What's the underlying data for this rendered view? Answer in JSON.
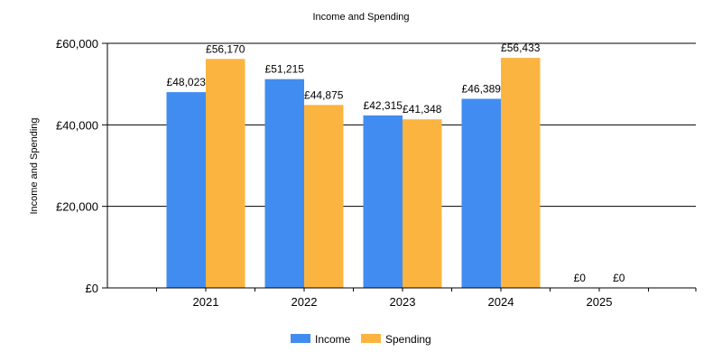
{
  "chart_data": {
    "type": "bar",
    "title": "Income and Spending",
    "ylabel": "Income and Spending",
    "xlabel": "",
    "categories": [
      "2021",
      "2022",
      "2023",
      "2024",
      "2025"
    ],
    "series": [
      {
        "name": "Income",
        "color": "#418cf0",
        "values": [
          48023,
          51215,
          42315,
          46389,
          0
        ],
        "labels": [
          "£48,023",
          "£51,215",
          "£42,315",
          "£46,389",
          "£0"
        ]
      },
      {
        "name": "Spending",
        "color": "#fcb441",
        "values": [
          56170,
          44875,
          41348,
          56433,
          0
        ],
        "labels": [
          "£56,170",
          "£44,875",
          "£41,348",
          "£56,433",
          "£0"
        ]
      }
    ],
    "ylim": [
      0,
      60000
    ],
    "yticks": [
      0,
      20000,
      40000,
      60000
    ],
    "ytick_labels": [
      "£0",
      "£20,000",
      "£40,000",
      "£60,000"
    ],
    "grid": true,
    "legend_position": "bottom-center"
  }
}
